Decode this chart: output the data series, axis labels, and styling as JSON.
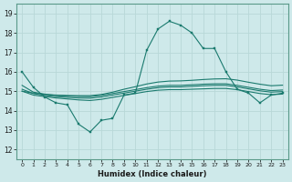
{
  "xlabel": "Humidex (Indice chaleur)",
  "bg_color": "#cee9ea",
  "line_color": "#1a7a6e",
  "grid_color": "#b8d8d8",
  "xlim": [
    -0.5,
    23.5
  ],
  "ylim": [
    11.5,
    19.5
  ],
  "xticks": [
    0,
    1,
    2,
    3,
    4,
    5,
    6,
    7,
    8,
    9,
    10,
    11,
    12,
    13,
    14,
    15,
    16,
    17,
    18,
    19,
    20,
    21,
    22,
    23
  ],
  "yticks": [
    12,
    13,
    14,
    15,
    16,
    17,
    18,
    19
  ],
  "series_main": [
    16.0,
    15.2,
    14.7,
    14.4,
    14.3,
    13.3,
    12.9,
    13.5,
    13.6,
    14.8,
    14.9,
    17.1,
    18.2,
    18.6,
    18.4,
    18.0,
    17.2,
    17.2,
    16.0,
    15.1,
    14.9,
    14.4,
    14.8,
    14.9
  ],
  "series_flat1": [
    15.0,
    14.8,
    14.72,
    14.65,
    14.6,
    14.55,
    14.52,
    14.58,
    14.68,
    14.78,
    14.88,
    14.98,
    15.05,
    15.08,
    15.08,
    15.1,
    15.12,
    15.14,
    15.14,
    15.08,
    14.98,
    14.88,
    14.82,
    14.85
  ],
  "series_flat2": [
    15.1,
    14.88,
    14.78,
    14.72,
    14.68,
    14.65,
    14.64,
    14.7,
    14.8,
    14.9,
    15.0,
    15.1,
    15.18,
    15.22,
    15.22,
    15.25,
    15.28,
    15.3,
    15.3,
    15.22,
    15.12,
    15.02,
    14.95,
    14.98
  ],
  "series_flat3": [
    15.3,
    14.95,
    14.85,
    14.78,
    14.75,
    14.73,
    14.72,
    14.78,
    14.88,
    14.98,
    15.08,
    15.18,
    15.26,
    15.3,
    15.3,
    15.33,
    15.36,
    15.38,
    15.38,
    15.3,
    15.2,
    15.1,
    15.03,
    15.06
  ],
  "series_rising": [
    15.0,
    14.9,
    14.83,
    14.8,
    14.78,
    14.77,
    14.77,
    14.83,
    14.95,
    15.1,
    15.23,
    15.37,
    15.47,
    15.52,
    15.53,
    15.56,
    15.6,
    15.63,
    15.64,
    15.57,
    15.46,
    15.36,
    15.28,
    15.31
  ]
}
